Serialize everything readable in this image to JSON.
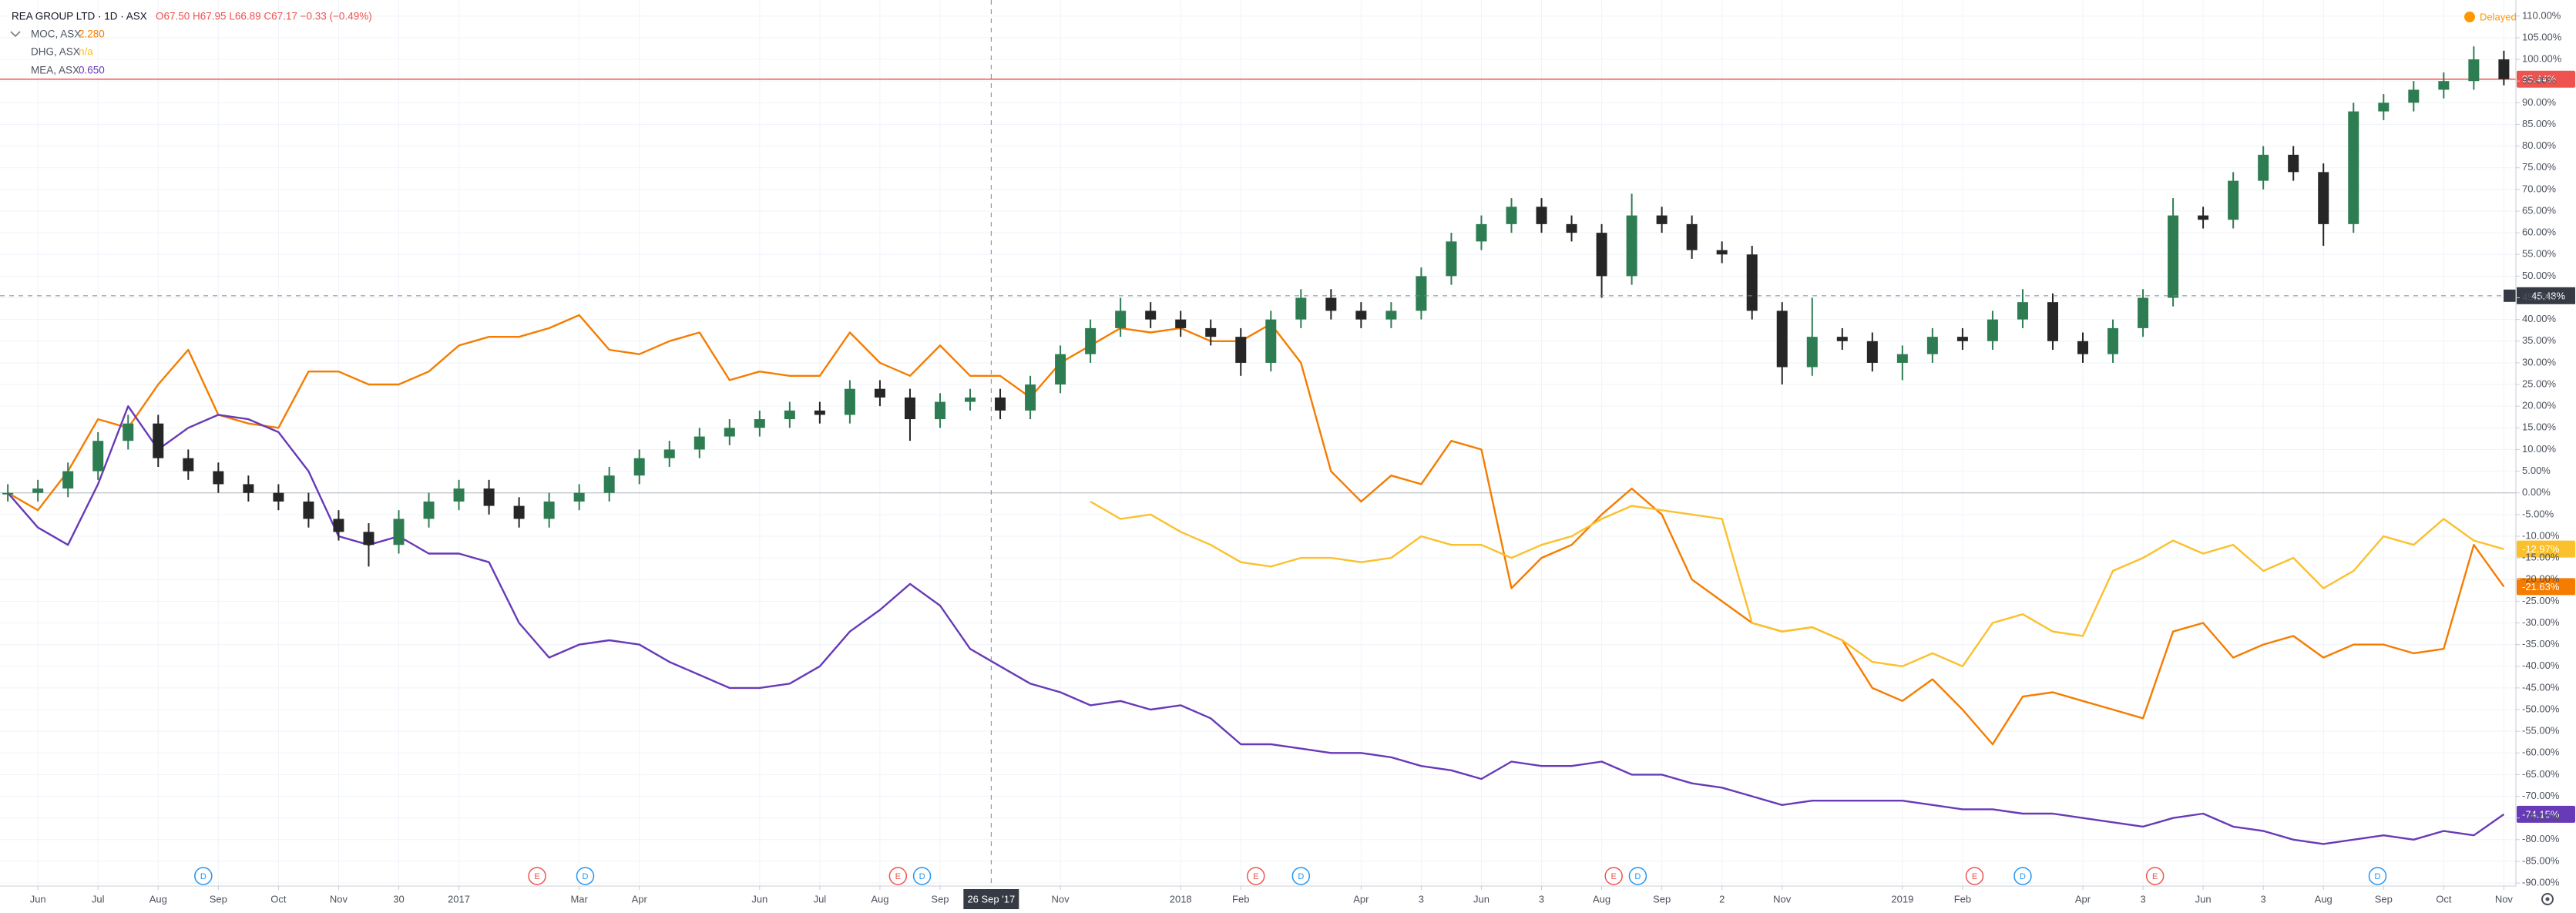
{
  "chart_data": {
    "type": "candlestick",
    "status": "Delayed",
    "xlim": [
      -0.63,
      41.2
    ],
    "ylim": [
      -90.7,
      113.7
    ],
    "grid": true,
    "xticks": [
      {
        "value": 0,
        "label": "Jun"
      },
      {
        "value": 1,
        "label": "Jul"
      },
      {
        "value": 2,
        "label": "Aug"
      },
      {
        "value": 3,
        "label": "Sep"
      },
      {
        "value": 4,
        "label": "Oct"
      },
      {
        "value": 5,
        "label": "Nov"
      },
      {
        "value": 6,
        "label": "30"
      },
      {
        "value": 7,
        "label": "2017"
      },
      {
        "value": 9,
        "label": "Mar"
      },
      {
        "value": 10,
        "label": "Apr"
      },
      {
        "value": 12,
        "label": "Jun"
      },
      {
        "value": 13,
        "label": "Jul"
      },
      {
        "value": 14,
        "label": "Aug"
      },
      {
        "value": 15,
        "label": "Sep"
      },
      {
        "value": 17,
        "label": "Nov"
      },
      {
        "value": 19,
        "label": "2018"
      },
      {
        "value": 20,
        "label": "Feb"
      },
      {
        "value": 22,
        "label": "Apr"
      },
      {
        "value": 23,
        "label": "3"
      },
      {
        "value": 24,
        "label": "Jun"
      },
      {
        "value": 25,
        "label": "3"
      },
      {
        "value": 26,
        "label": "Aug"
      },
      {
        "value": 27,
        "label": "Sep"
      },
      {
        "value": 28,
        "label": "2"
      },
      {
        "value": 29,
        "label": "Nov"
      },
      {
        "value": 31,
        "label": "2019"
      },
      {
        "value": 32,
        "label": "Feb"
      },
      {
        "value": 34,
        "label": "Apr"
      },
      {
        "value": 35,
        "label": "3"
      },
      {
        "value": 36,
        "label": "Jun"
      },
      {
        "value": 37,
        "label": "3"
      },
      {
        "value": 38,
        "label": "Aug"
      },
      {
        "value": 39,
        "label": "Sep"
      },
      {
        "value": 40,
        "label": "Oct"
      },
      {
        "value": 41,
        "label": "Nov"
      }
    ],
    "yticks": [
      {
        "value": 110,
        "label": "110.00%"
      },
      {
        "value": 105,
        "label": "105.00%"
      },
      {
        "value": 100,
        "label": "100.00%"
      },
      {
        "value": 95,
        "label": "95.00%"
      },
      {
        "value": 90,
        "label": "90.00%"
      },
      {
        "value": 85,
        "label": "85.00%"
      },
      {
        "value": 80,
        "label": "80.00%"
      },
      {
        "value": 75,
        "label": "75.00%"
      },
      {
        "value": 70,
        "label": "70.00%"
      },
      {
        "value": 65,
        "label": "65.00%"
      },
      {
        "value": 60,
        "label": "60.00%"
      },
      {
        "value": 55,
        "label": "55.00%"
      },
      {
        "value": 50,
        "label": "50.00%"
      },
      {
        "value": 45,
        "label": "45.00%"
      },
      {
        "value": 40,
        "label": "40.00%"
      },
      {
        "value": 35,
        "label": "35.00%"
      },
      {
        "value": 30,
        "label": "30.00%"
      },
      {
        "value": 25,
        "label": "25.00%"
      },
      {
        "value": 20,
        "label": "20.00%"
      },
      {
        "value": 15,
        "label": "15.00%"
      },
      {
        "value": 10,
        "label": "10.00%"
      },
      {
        "value": 5,
        "label": "5.00%"
      },
      {
        "value": 0,
        "label": "0.00%"
      },
      {
        "value": -5,
        "label": "-5.00%"
      },
      {
        "value": -10,
        "label": "-10.00%"
      },
      {
        "value": -15,
        "label": "-15.00%"
      },
      {
        "value": -20,
        "label": "-20.00%"
      },
      {
        "value": -25,
        "label": "-25.00%"
      },
      {
        "value": -30,
        "label": "-30.00%"
      },
      {
        "value": -35,
        "label": "-35.00%"
      },
      {
        "value": -40,
        "label": "-40.00%"
      },
      {
        "value": -45,
        "label": "-45.00%"
      },
      {
        "value": -50,
        "label": "-50.00%"
      },
      {
        "value": -55,
        "label": "-55.00%"
      },
      {
        "value": -60,
        "label": "-60.00%"
      },
      {
        "value": -65,
        "label": "-65.00%"
      },
      {
        "value": -70,
        "label": "-70.00%"
      },
      {
        "value": -75,
        "label": "-75.00%"
      },
      {
        "value": -80,
        "label": "-80.00%"
      },
      {
        "value": -85,
        "label": "-85.00%"
      },
      {
        "value": -90,
        "label": "-90.00%"
      }
    ],
    "x": [
      -0.5,
      0,
      0.5,
      1,
      1.5,
      2,
      2.5,
      3,
      3.5,
      4,
      4.5,
      5,
      5.5,
      6,
      6.5,
      7,
      7.5,
      8,
      8.5,
      9,
      9.5,
      10,
      10.5,
      11,
      11.5,
      12,
      12.5,
      13,
      13.5,
      14,
      14.5,
      15,
      15.5,
      16,
      16.5,
      17,
      17.5,
      18,
      18.5,
      19,
      19.5,
      20,
      20.5,
      21,
      21.5,
      22,
      22.5,
      23,
      23.5,
      24,
      24.5,
      25,
      25.5,
      26,
      26.5,
      27,
      27.5,
      28,
      28.5,
      29,
      29.5,
      30,
      30.5,
      31,
      31.5,
      32,
      32.5,
      33,
      33.5,
      34,
      34.5,
      35,
      35.5,
      36,
      36.5,
      37,
      37.5,
      38,
      38.5,
      39,
      39.5,
      40,
      40.5,
      41
    ],
    "series": [
      {
        "name": "REA GROUP LTD · 1D · ASX",
        "type": "candlestick",
        "ohlc_label": "O67.50 H67.95 L66.89 C67.17 −0.33 (−0.49%)",
        "up_color": "#2e7d52",
        "down_color": "#262626",
        "color": "#ef5350",
        "last_label": "95.44%",
        "open": [
          0,
          0,
          1,
          5,
          12,
          16,
          8,
          5,
          2,
          0,
          -2,
          -6,
          -9,
          -12,
          -6,
          -2,
          1,
          -3,
          -6,
          -2,
          0,
          4,
          8,
          10,
          13,
          15,
          17,
          19,
          18,
          24,
          22,
          17,
          21,
          22,
          19,
          25,
          32,
          38,
          42,
          40,
          38,
          36,
          30,
          40,
          45,
          42,
          40,
          42,
          50,
          58,
          62,
          66,
          62,
          60,
          50,
          64,
          62,
          56,
          55,
          42,
          29,
          36,
          35,
          30,
          32,
          36,
          35,
          40,
          44,
          35,
          32,
          38,
          45,
          64,
          63,
          72,
          78,
          74,
          62,
          88,
          90,
          93,
          95,
          100
        ],
        "high": [
          2,
          3,
          7,
          14,
          18,
          18,
          10,
          7,
          4,
          2,
          0,
          -4,
          -7,
          -4,
          0,
          3,
          3,
          -1,
          0,
          2,
          6,
          10,
          12,
          15,
          17,
          19,
          21,
          21,
          26,
          26,
          24,
          23,
          24,
          24,
          27,
          34,
          40,
          45,
          44,
          42,
          40,
          38,
          42,
          47,
          47,
          44,
          44,
          52,
          60,
          64,
          68,
          68,
          64,
          62,
          69,
          66,
          64,
          58,
          57,
          44,
          45,
          38,
          37,
          34,
          38,
          38,
          42,
          47,
          46,
          37,
          40,
          47,
          68,
          66,
          74,
          80,
          80,
          76,
          90,
          92,
          95,
          97,
          103,
          102
        ],
        "low": [
          -2,
          -2,
          -1,
          3,
          10,
          6,
          3,
          0,
          -2,
          -4,
          -8,
          -11,
          -17,
          -14,
          -8,
          -4,
          -5,
          -8,
          -8,
          -4,
          -2,
          2,
          6,
          8,
          11,
          13,
          15,
          16,
          16,
          20,
          12,
          15,
          19,
          17,
          17,
          23,
          30,
          36,
          38,
          36,
          34,
          27,
          28,
          38,
          40,
          38,
          38,
          40,
          48,
          56,
          60,
          60,
          58,
          45,
          48,
          60,
          54,
          53,
          40,
          25,
          27,
          33,
          28,
          26,
          30,
          33,
          33,
          38,
          33,
          30,
          30,
          36,
          43,
          61,
          61,
          70,
          72,
          57,
          60,
          86,
          88,
          91,
          93,
          94
        ],
        "close": [
          0,
          1,
          5,
          12,
          16,
          8,
          5,
          2,
          0,
          -2,
          -6,
          -9,
          -12,
          -6,
          -2,
          1,
          -3,
          -6,
          -2,
          0,
          4,
          8,
          10,
          13,
          15,
          17,
          19,
          18,
          24,
          22,
          17,
          21,
          22,
          19,
          25,
          32,
          38,
          42,
          40,
          38,
          36,
          30,
          40,
          45,
          42,
          40,
          42,
          50,
          58,
          62,
          66,
          62,
          60,
          50,
          64,
          62,
          56,
          55,
          42,
          29,
          36,
          35,
          30,
          32,
          36,
          35,
          40,
          44,
          35,
          32,
          38,
          45,
          64,
          63,
          72,
          78,
          74,
          62,
          88,
          90,
          93,
          95,
          100,
          95.44
        ]
      },
      {
        "name": "MOC, ASX",
        "type": "line",
        "legend_value": "2.280",
        "color": "#f57c00",
        "last_label": "-21.63%",
        "values": [
          0,
          -4,
          5,
          17,
          15,
          25,
          33,
          18,
          16,
          15,
          28,
          28,
          25,
          25,
          28,
          34,
          36,
          36,
          38,
          41,
          33,
          32,
          35,
          37,
          26,
          28,
          27,
          27,
          37,
          30,
          27,
          34,
          27,
          27,
          22,
          30,
          34,
          38,
          37,
          38,
          35,
          35,
          39,
          30,
          5,
          -2,
          4,
          2,
          12,
          10,
          -22,
          -15,
          -12,
          -5,
          1,
          -5,
          -20,
          -25,
          -30,
          -32,
          -31,
          -34,
          -45,
          -48,
          -43,
          -50,
          -58,
          -47,
          -46,
          -48,
          -50,
          -52,
          -32,
          -30,
          -38,
          -35,
          -33,
          -38,
          -35,
          -35,
          -37,
          -36,
          -12,
          -21.63
        ]
      },
      {
        "name": "DHG, ASX",
        "type": "line",
        "legend_value": "n/a",
        "color": "#fbc02d",
        "last_label": "-12.97%",
        "values": [
          null,
          null,
          null,
          null,
          null,
          null,
          null,
          null,
          null,
          null,
          null,
          null,
          null,
          null,
          null,
          null,
          null,
          null,
          null,
          null,
          null,
          null,
          null,
          null,
          null,
          null,
          null,
          null,
          null,
          null,
          null,
          null,
          null,
          null,
          null,
          null,
          -2,
          -6,
          -5,
          -9,
          -12,
          -16,
          -17,
          -15,
          -15,
          -16,
          -15,
          -10,
          -12,
          -12,
          -15,
          -12,
          -10,
          -6,
          -3,
          -4,
          -5,
          -6,
          -30,
          -32,
          -31,
          -34,
          -39,
          -40,
          -37,
          -40,
          -30,
          -28,
          -32,
          -33,
          -18,
          -15,
          -11,
          -14,
          -12,
          -18,
          -15,
          -22,
          -18,
          -10,
          -12,
          -6,
          -11,
          -12.97
        ]
      },
      {
        "name": "MEA, ASX",
        "type": "line",
        "legend_value": "0.650",
        "color": "#673ab7",
        "last_label": "-74.15%",
        "values": [
          0,
          -8,
          -12,
          2,
          20,
          10,
          15,
          18,
          17,
          14,
          5,
          -10,
          -12,
          -10,
          -14,
          -14,
          -16,
          -30,
          -38,
          -35,
          -34,
          -35,
          -39,
          -42,
          -45,
          -45,
          -44,
          -40,
          -32,
          -27,
          -21,
          -26,
          -36,
          -40,
          -44,
          -46,
          -49,
          -48,
          -50,
          -49,
          -52,
          -58,
          -58,
          -59,
          -60,
          -60,
          -61,
          -63,
          -64,
          -66,
          -62,
          -63,
          -63,
          -62,
          -65,
          -65,
          -67,
          -68,
          -70,
          -72,
          -71,
          -71,
          -71,
          -71,
          -72,
          -73,
          -73,
          -74,
          -74,
          -75,
          -76,
          -77,
          -75,
          -74,
          -77,
          -78,
          -80,
          -81,
          -80,
          -79,
          -80,
          -78,
          -79,
          -74.15
        ]
      }
    ],
    "crosshair": {
      "x": {
        "value": 15.85,
        "label": "26 Sep '17"
      },
      "y": {
        "value": 45.48,
        "label": "45.48%"
      }
    },
    "events": [
      {
        "x": 2.75,
        "label": "D",
        "color": "#2196f3"
      },
      {
        "x": 8.3,
        "label": "E",
        "color": "#ef5350"
      },
      {
        "x": 9.1,
        "label": "D",
        "color": "#2196f3"
      },
      {
        "x": 14.3,
        "label": "E",
        "color": "#ef5350"
      },
      {
        "x": 14.7,
        "label": "D",
        "color": "#2196f3"
      },
      {
        "x": 20.25,
        "label": "E",
        "color": "#ef5350"
      },
      {
        "x": 21.0,
        "label": "D",
        "color": "#2196f3"
      },
      {
        "x": 26.2,
        "label": "E",
        "color": "#ef5350"
      },
      {
        "x": 26.6,
        "label": "D",
        "color": "#2196f3"
      },
      {
        "x": 32.2,
        "label": "E",
        "color": "#ef5350"
      },
      {
        "x": 33.0,
        "label": "D",
        "color": "#2196f3"
      },
      {
        "x": 35.2,
        "label": "E",
        "color": "#ef5350"
      },
      {
        "x": 38.9,
        "label": "D",
        "color": "#2196f3"
      }
    ]
  }
}
